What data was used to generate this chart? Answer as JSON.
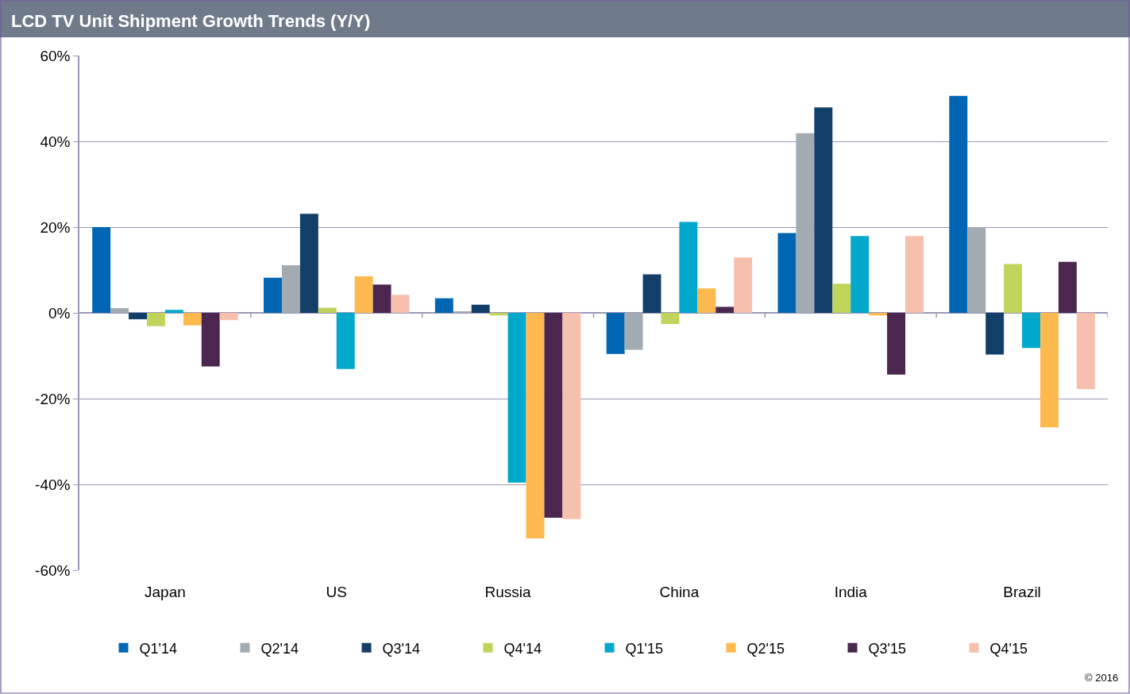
{
  "chart_data": {
    "type": "bar",
    "title": "LCD TV Unit Shipment Growth Trends (Y/Y)",
    "categories": [
      "Japan",
      "US",
      "Russia",
      "China",
      "India",
      "Brazil"
    ],
    "series": [
      {
        "name": "Q1'14",
        "color": "#0066b3",
        "values": [
          20,
          8.2,
          3.4,
          -9.6,
          18.6,
          50.6
        ]
      },
      {
        "name": "Q2'14",
        "color": "#a2abb1",
        "values": [
          1.1,
          11.1,
          0.3,
          -8.6,
          41.9,
          20
        ]
      },
      {
        "name": "Q3'14",
        "color": "#123e68",
        "values": [
          -1.5,
          23.1,
          1.9,
          9.0,
          47.9,
          -9.7
        ]
      },
      {
        "name": "Q4'14",
        "color": "#c0d35b",
        "values": [
          -3.1,
          1.2,
          -0.6,
          -2.6,
          6.8,
          11.4
        ]
      },
      {
        "name": "Q1'15",
        "color": "#00a8cc",
        "values": [
          0.7,
          -13.1,
          -39.6,
          21.2,
          17.9,
          -8.2
        ]
      },
      {
        "name": "Q2'15",
        "color": "#fdb94e",
        "values": [
          -2.9,
          8.5,
          -52.6,
          5.7,
          -0.6,
          -26.7
        ]
      },
      {
        "name": "Q3'15",
        "color": "#4b264e",
        "values": [
          -12.5,
          6.6,
          -47.8,
          1.4,
          -14.4,
          11.9
        ]
      },
      {
        "name": "Q4'15",
        "color": "#f6bfae",
        "values": [
          -1.7,
          4.2,
          -48.1,
          12.9,
          17.9,
          -17.8
        ]
      }
    ],
    "ylim": [
      -60,
      60
    ],
    "yticks": [
      {
        "value": -60,
        "label": "-60%"
      },
      {
        "value": -40,
        "label": "-40%"
      },
      {
        "value": -20,
        "label": "-20%"
      },
      {
        "value": 0,
        "label": "0%"
      },
      {
        "value": 20,
        "label": "20%"
      },
      {
        "value": 40,
        "label": "40%"
      },
      {
        "value": 60,
        "label": "60%"
      }
    ],
    "grid": "y",
    "legend": "bottom",
    "annotations": [
      "© 2016"
    ]
  }
}
